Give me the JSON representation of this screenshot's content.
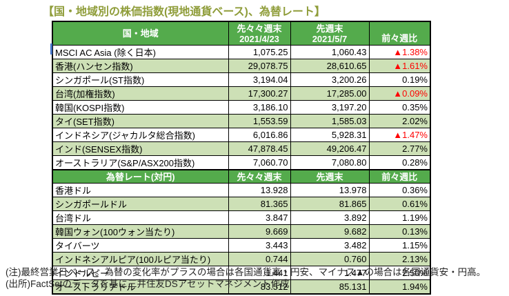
{
  "title": "【国・地域別の株価指数(現地通貨ベース)、為替レート】",
  "colors": {
    "header_green": "#54ab4c",
    "row_green": "#cde0b6",
    "negative_red": "#ff0000",
    "title_olive": "#8f9d3a",
    "cursor_blue": "#4472c4"
  },
  "stock": {
    "header": {
      "country": "国・地域",
      "prev2_label": "先々々週末",
      "prev2_date": "2021/4/23",
      "prev_label": "先週末",
      "prev_date": "2021/5/7",
      "change_label": "前々週比"
    },
    "rows": [
      {
        "name": "MSCI AC Asia (除く日本)",
        "prev2": "1,075.25",
        "prev": "1,060.43",
        "change": "▲1.38%"
      },
      {
        "name": "香港(ハンセン指数)",
        "prev2": "29,078.75",
        "prev": "28,610.65",
        "change": "▲1.61%"
      },
      {
        "name": "シンガポール(ST指数)",
        "prev2": "3,194.04",
        "prev": "3,200.26",
        "change": "0.19%"
      },
      {
        "name": "台湾(加権指数)",
        "prev2": "17,300.27",
        "prev": "17,285.00",
        "change": "▲0.09%"
      },
      {
        "name": "韓国(KOSPI指数)",
        "prev2": "3,186.10",
        "prev": "3,197.20",
        "change": "0.35%"
      },
      {
        "name": "タイ(SET指数)",
        "prev2": "1,553.59",
        "prev": "1,585.03",
        "change": "2.02%"
      },
      {
        "name": "インドネシア(ジャカルタ総合指数)",
        "prev2": "6,016.86",
        "prev": "5,928.31",
        "change": "▲1.47%"
      },
      {
        "name": "インド(SENSEX指数)",
        "prev2": "47,878.45",
        "prev": "49,206.47",
        "change": "2.77%"
      },
      {
        "name": "オーストラリア(S&P/ASX200指数)",
        "prev2": "7,060.70",
        "prev": "7,080.80",
        "change": "0.28%"
      }
    ]
  },
  "fx": {
    "header": {
      "country": "為替レート(対円)",
      "prev2_label": "先々々週末",
      "prev_label": "先週末",
      "change_label": "前々週比"
    },
    "rows": [
      {
        "name": "香港ドル",
        "prev2": "13.928",
        "prev": "13.978",
        "change": "0.36%"
      },
      {
        "name": "シンガポールドル",
        "prev2": "81.365",
        "prev": "81.865",
        "change": "0.61%"
      },
      {
        "name": "台湾ドル",
        "prev2": "3.847",
        "prev": "3.892",
        "change": "1.19%"
      },
      {
        "name": "韓国ウォン(100ウォン当たり)",
        "prev2": "9.669",
        "prev": "9.682",
        "change": "0.13%"
      },
      {
        "name": "タイバーツ",
        "prev2": "3.443",
        "prev": "3.482",
        "change": "1.15%"
      },
      {
        "name": "インドネシアルピア(100ルピア当たり)",
        "prev2": "0.744",
        "prev": "0.760",
        "change": "2.13%"
      },
      {
        "name": "インドルピー",
        "prev2": "1.441",
        "prev": "1.477",
        "change": "2.50%"
      },
      {
        "name": "オーストラリアドル",
        "prev2": "83.512",
        "prev": "85.131",
        "change": "1.94%"
      }
    ]
  },
  "notes": {
    "note": "(注)最終営業日ベース。為替の変化率がプラスの場合は各国通貨高・円安、マイナス▲の場合は各国通貨安・円高。",
    "source": "(出所)FactSetのデータを基に三井住友DSアセットマネジメント作成"
  }
}
